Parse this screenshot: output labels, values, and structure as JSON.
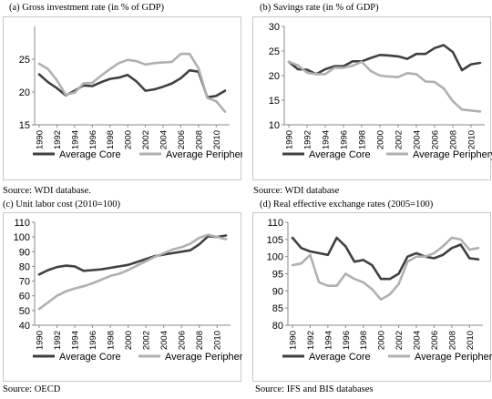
{
  "panels": [
    {
      "title": "(a)   Gross investment rate (in % of GDP)",
      "source": "Source: WDI database.",
      "chart_data": {
        "type": "line",
        "x": [
          1990,
          1991,
          1992,
          1993,
          1994,
          1995,
          1996,
          1997,
          1998,
          1999,
          2000,
          2001,
          2002,
          2003,
          2004,
          2005,
          2006,
          2007,
          2008,
          2009,
          2010,
          2011
        ],
        "xticks": [
          "1990",
          "1992",
          "1994",
          "1996",
          "1998",
          "2000",
          "2002",
          "2004",
          "2006",
          "2008",
          "2010"
        ],
        "ylim": [
          15,
          30
        ],
        "yticks": [
          15,
          20,
          25
        ],
        "series": [
          {
            "name": "Average Core",
            "color": "#404040",
            "values": [
              22.7,
              21.5,
              20.6,
              19.5,
              20.2,
              21.0,
              20.9,
              21.5,
              22.0,
              22.2,
              22.6,
              21.6,
              20.2,
              20.4,
              20.8,
              21.3,
              22.1,
              23.3,
              23.1,
              19.2,
              19.4,
              20.2
            ]
          },
          {
            "name": "Average Periphery",
            "color": "#b0b0b0",
            "values": [
              24.3,
              23.5,
              21.8,
              19.6,
              19.9,
              21.3,
              21.4,
              22.5,
              23.5,
              24.4,
              24.9,
              24.7,
              24.2,
              24.4,
              24.5,
              24.6,
              25.8,
              25.8,
              23.6,
              19.1,
              18.6,
              17.0
            ]
          }
        ]
      }
    },
    {
      "title": "(b)   Savings rate (in % of GDP)",
      "source": "Source: WDI database",
      "chart_data": {
        "type": "line",
        "x": [
          1990,
          1991,
          1992,
          1993,
          1994,
          1995,
          1996,
          1997,
          1998,
          1999,
          2000,
          2001,
          2002,
          2003,
          2004,
          2005,
          2006,
          2007,
          2008,
          2009,
          2010,
          2011
        ],
        "xticks": [
          "1990",
          "1992",
          "1994",
          "1996",
          "1998",
          "2000",
          "2002",
          "2004",
          "2006",
          "2008",
          "2010"
        ],
        "ylim": [
          10,
          30
        ],
        "yticks": [
          10,
          15,
          20,
          25,
          30
        ],
        "series": [
          {
            "name": "Average Core",
            "color": "#404040",
            "values": [
              22.8,
              21.3,
              21.2,
              20.3,
              21.3,
              21.9,
              21.9,
              22.9,
              22.9,
              23.6,
              24.2,
              24.1,
              23.9,
              23.4,
              24.4,
              24.4,
              25.6,
              26.2,
              24.8,
              21.1,
              22.3,
              22.6
            ]
          },
          {
            "name": "Average Periphery",
            "color": "#b0b0b0",
            "values": [
              22.8,
              22.1,
              20.6,
              20.3,
              20.3,
              21.6,
              21.6,
              22.0,
              22.8,
              20.9,
              20.0,
              19.8,
              19.7,
              20.5,
              20.3,
              18.8,
              18.7,
              17.4,
              14.8,
              13.1,
              12.9,
              12.7
            ]
          }
        ]
      }
    },
    {
      "title": "(c)  Unit labor cost (2010=100)",
      "source": "Source: OECD",
      "chart_data": {
        "type": "line",
        "x": [
          1990,
          1991,
          1992,
          1993,
          1994,
          1995,
          1996,
          1997,
          1998,
          1999,
          2000,
          2001,
          2002,
          2003,
          2004,
          2005,
          2006,
          2007,
          2008,
          2009,
          2010,
          2011
        ],
        "xticks": [
          "1990",
          "1992",
          "1994",
          "1996",
          "1998",
          "2000",
          "2002",
          "2004",
          "2006",
          "2008",
          "2010"
        ],
        "ylim": [
          40,
          110
        ],
        "yticks": [
          40,
          50,
          60,
          70,
          80,
          90,
          100,
          110
        ],
        "series": [
          {
            "name": "Average Core",
            "color": "#404040",
            "values": [
              74.5,
              77.5,
              79.5,
              80.5,
              80.0,
              77.0,
              77.5,
              78.0,
              79.0,
              80.0,
              81.0,
              83.0,
              85.0,
              87.0,
              88.0,
              89.0,
              90.0,
              91.0,
              95.0,
              100.5,
              100.0,
              101.0
            ]
          },
          {
            "name": "Average Periphery",
            "color": "#b0b0b0",
            "values": [
              51.0,
              55.5,
              60.0,
              63.0,
              65.0,
              66.5,
              68.5,
              71.0,
              73.5,
              75.0,
              77.5,
              80.5,
              83.5,
              86.5,
              89.0,
              91.5,
              93.0,
              95.5,
              99.5,
              101.5,
              100.0,
              98.5
            ]
          }
        ]
      }
    },
    {
      "title": "(d)  Real effective exchange rates (2005=100)",
      "source": "Source: IFS and BIS databases",
      "chart_data": {
        "type": "line",
        "x": [
          1990,
          1991,
          1992,
          1993,
          1994,
          1995,
          1996,
          1997,
          1998,
          1999,
          2000,
          2001,
          2002,
          2003,
          2004,
          2005,
          2006,
          2007,
          2008,
          2009,
          2010,
          2011
        ],
        "xticks": [
          "1990",
          "1992",
          "1994",
          "1996",
          "1998",
          "2000",
          "2002",
          "2004",
          "2006",
          "2008",
          "2010"
        ],
        "ylim": [
          80,
          110
        ],
        "yticks": [
          80,
          85,
          90,
          95,
          100,
          105,
          110
        ],
        "series": [
          {
            "name": "Average Core",
            "color": "#404040",
            "values": [
              105.5,
              102.5,
              101.5,
              101.0,
              100.5,
              105.5,
              103.0,
              98.5,
              99.0,
              97.5,
              93.5,
              93.5,
              95.0,
              100.0,
              101.0,
              100.0,
              99.5,
              100.5,
              102.5,
              103.5,
              99.5,
              99.2
            ]
          },
          {
            "name": "Average Periphery",
            "color": "#b0b0b0",
            "values": [
              97.5,
              98.0,
              100.5,
              92.5,
              91.5,
              91.5,
              95.0,
              93.5,
              92.5,
              90.5,
              87.5,
              89.0,
              92.0,
              98.5,
              100.0,
              100.0,
              101.0,
              103.0,
              105.5,
              105.0,
              102.0,
              102.5
            ]
          }
        ]
      }
    }
  ]
}
